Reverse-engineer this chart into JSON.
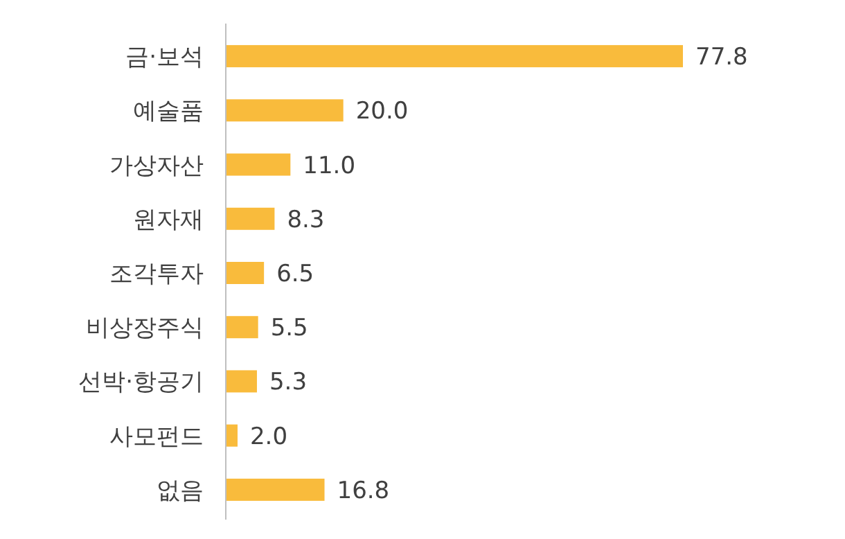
{
  "chart_data": {
    "type": "bar",
    "orientation": "horizontal",
    "color": "#f9bb3c",
    "categories": [
      "금·보석",
      "예술품",
      "가상자산",
      "원자재",
      "조각투자",
      "비상장주식",
      "선박·항공기",
      "사모펀드",
      "없음"
    ],
    "values": [
      77.8,
      20.0,
      11.0,
      8.3,
      6.5,
      5.5,
      5.3,
      2.0,
      16.8
    ],
    "value_labels": [
      "77.8",
      "20.0",
      "11.0",
      "8.3",
      "6.5",
      "5.5",
      "5.3",
      "2.0",
      "16.8"
    ]
  }
}
